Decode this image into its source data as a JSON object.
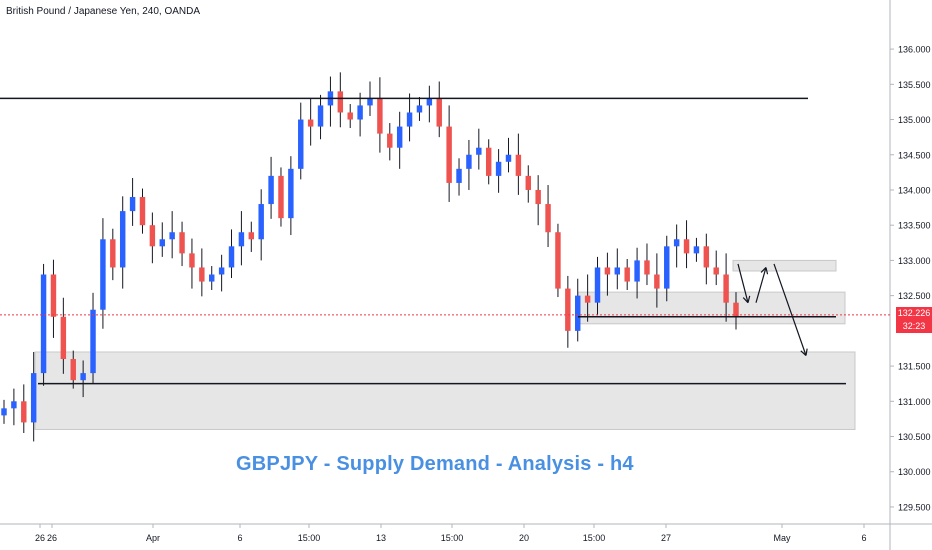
{
  "header": {
    "title": "British Pound / Japanese Yen, 240, OANDA"
  },
  "annotation": {
    "text": "GBPJPY - Supply Demand - Analysis - h4",
    "color": "#4a90e2"
  },
  "last_price": {
    "value": "132.226",
    "countdown": "32:23",
    "color": "#f23645"
  },
  "colors": {
    "up": "#2962ff",
    "down": "#ef5350",
    "wick": "#131722",
    "zone": "#e6e6e6"
  },
  "chart_data": {
    "type": "candlestick",
    "symbol": "British Pound / Japanese Yen",
    "timeframe": "240",
    "source": "OANDA",
    "ylim": [
      129.4,
      136.2
    ],
    "y_ticks": [
      "136.000",
      "135.500",
      "135.000",
      "134.500",
      "134.000",
      "133.500",
      "133.000",
      "132.500",
      "131.500",
      "131.000",
      "130.500",
      "130.000",
      "129.500"
    ],
    "x_ticks": [
      "26",
      "26",
      "Apr",
      "6",
      "15:00",
      "13",
      "15:00",
      "20",
      "15:00",
      "27",
      "May",
      "6"
    ],
    "close_path": [
      130.9,
      131.0,
      130.7,
      131.4,
      132.8,
      132.2,
      131.6,
      131.3,
      131.4,
      132.3,
      133.3,
      132.9,
      133.7,
      133.9,
      133.5,
      133.2,
      133.3,
      133.4,
      133.1,
      132.9,
      132.7,
      132.8,
      132.9,
      133.2,
      133.4,
      133.3,
      133.8,
      134.2,
      133.6,
      134.3,
      135.0,
      134.9,
      135.2,
      135.4,
      135.1,
      135.0,
      135.2,
      135.3,
      134.8,
      134.6,
      134.9,
      135.1,
      135.2,
      135.3,
      134.9,
      134.1,
      134.3,
      134.5,
      134.6,
      134.2,
      134.4,
      134.5,
      134.2,
      134.0,
      133.8,
      133.4,
      132.6,
      132.0,
      132.5,
      132.4,
      132.9,
      132.8,
      132.9,
      132.7,
      133.0,
      132.8,
      132.6,
      133.2,
      133.3,
      133.1,
      133.2,
      132.9,
      132.8,
      132.4,
      132.2
    ],
    "horizontal_levels": [
      135.3,
      132.2,
      131.25
    ],
    "zones": [
      {
        "from": 130.6,
        "to": 131.7
      },
      {
        "from": 132.1,
        "to": 132.55
      },
      {
        "from": 132.85,
        "to": 133.0
      }
    ],
    "arrows_path": [
      [
        132.95,
        132.4
      ],
      [
        132.4,
        132.9
      ],
      [
        132.95,
        131.65
      ]
    ]
  }
}
